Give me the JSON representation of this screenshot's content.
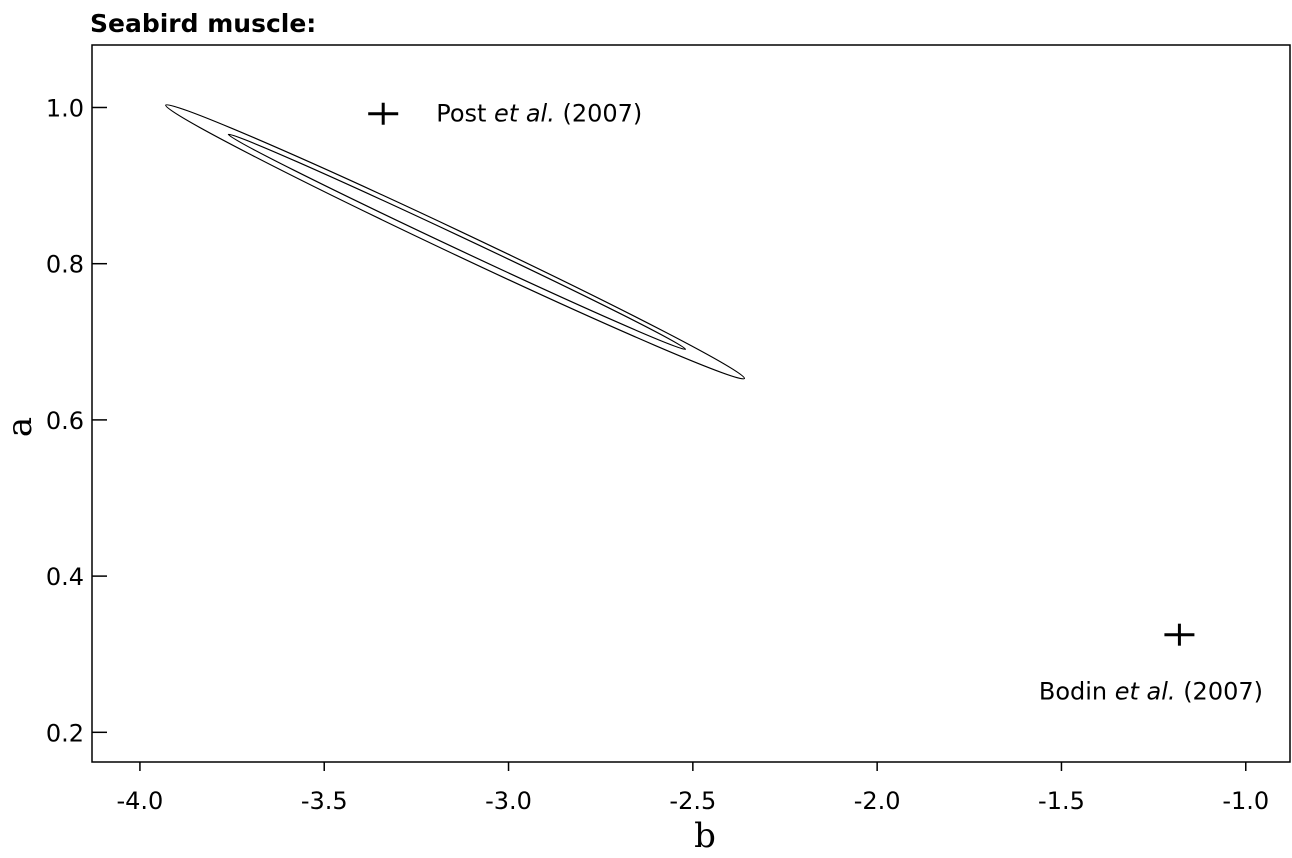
{
  "chart_data": {
    "type": "scatter",
    "title": "Seabird muscle:",
    "xlabel": "b",
    "ylabel": "a",
    "xlim": [
      -4.13,
      -0.88
    ],
    "ylim": [
      0.162,
      1.08
    ],
    "x_ticks": [
      -4.0,
      -3.5,
      -3.0,
      -2.5,
      -2.0,
      -1.5,
      -1.0
    ],
    "x_tick_labels": [
      "-4.0",
      "-3.5",
      "-3.0",
      "-2.5",
      "-2.0",
      "-1.5",
      "-1.0"
    ],
    "y_ticks": [
      0.2,
      0.4,
      0.6,
      0.8,
      1.0
    ],
    "y_tick_labels": [
      "0.2",
      "0.4",
      "0.6",
      "0.8",
      "1.0"
    ],
    "grid": false,
    "contours": [
      {
        "level": "outer",
        "center": [
          -3.145,
          0.828
        ],
        "endpoints": [
          [
            -3.93,
            1.003
          ],
          [
            -2.36,
            0.653
          ]
        ],
        "half_width_a": 0.0165
      },
      {
        "level": "inner",
        "center": [
          -3.14,
          0.828
        ],
        "endpoints": [
          [
            -3.76,
            0.965
          ],
          [
            -2.52,
            0.69
          ]
        ],
        "half_width_a": 0.009
      }
    ],
    "points": [
      {
        "x": -3.34,
        "y": 0.992,
        "marker": "+",
        "label_prefix": "Post ",
        "label_italic": "et al.",
        "label_suffix": " (2007)"
      },
      {
        "x": -1.18,
        "y": 0.325,
        "marker": "+",
        "label_prefix": "Bodin ",
        "label_italic": "et al.",
        "label_suffix": " (2007)"
      }
    ]
  }
}
